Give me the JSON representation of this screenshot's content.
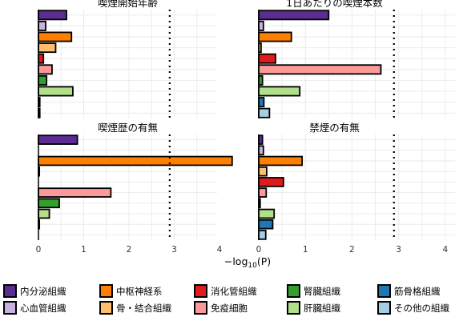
{
  "x_axis_label": "−log₁₀(P)",
  "xlabel_parts": {
    "prefix": "−log",
    "sub": "10",
    "suffix": "(P)"
  },
  "tissues": [
    {
      "key": "endocrine",
      "label": "内分泌組織",
      "color": "#5b2c91"
    },
    {
      "key": "cardiovascular",
      "label": "心血管組織",
      "color": "#c9b3dc"
    },
    {
      "key": "cns",
      "label": "中枢神経系",
      "color": "#ff7f00"
    },
    {
      "key": "bone",
      "label": "骨・結合組織",
      "color": "#fdbf6f"
    },
    {
      "key": "gi",
      "label": "消化管組織",
      "color": "#e31a1c"
    },
    {
      "key": "immune",
      "label": "免疫細胞",
      "color": "#fb9a99"
    },
    {
      "key": "kidney",
      "label": "腎臓組織",
      "color": "#33a02c"
    },
    {
      "key": "liver",
      "label": "肝臓組織",
      "color": "#b2df8a"
    },
    {
      "key": "muscle",
      "label": "筋骨格組織",
      "color": "#1f78b4"
    },
    {
      "key": "other",
      "label": "その他の組織",
      "color": "#a6cee3"
    }
  ],
  "chart_data": [
    {
      "type": "bar",
      "orientation": "horizontal",
      "title": "喫煙開始年齢",
      "categories": [
        "内分泌組織",
        "心血管組織",
        "中枢神経系",
        "骨・結合組織",
        "消化管組織",
        "免疫細胞",
        "腎臓組織",
        "肝臓組織",
        "筋骨格組織",
        "その他の組織"
      ],
      "values": [
        0.62,
        0.16,
        0.73,
        0.38,
        0.11,
        0.3,
        0.18,
        0.76,
        0.03,
        0.03
      ],
      "xlim": [
        0,
        4.2
      ],
      "xticks": [
        0,
        1,
        2,
        3,
        4
      ],
      "threshold": 2.9
    },
    {
      "type": "bar",
      "orientation": "horizontal",
      "title": "1日あたりの喫煙本数",
      "categories": [
        "内分泌組織",
        "心血管組織",
        "中枢神経系",
        "骨・結合組織",
        "消化管組織",
        "免疫細胞",
        "腎臓組織",
        "肝臓組織",
        "筋骨格組織",
        "その他の組織"
      ],
      "values": [
        1.5,
        0.1,
        0.7,
        0.05,
        0.36,
        2.62,
        0.08,
        0.88,
        0.11,
        0.23
      ],
      "xlim": [
        0,
        4.2
      ],
      "xticks": [
        0,
        1,
        2,
        3,
        4
      ],
      "threshold": 2.9
    },
    {
      "type": "bar",
      "orientation": "horizontal",
      "title": "喫煙歴の有無",
      "categories": [
        "内分泌組織",
        "心血管組織",
        "中枢神経系",
        "骨・結合組織",
        "消化管組織",
        "免疫細胞",
        "腎臓組織",
        "肝臓組織",
        "筋骨格組織",
        "その他の組織"
      ],
      "values": [
        0.86,
        0.0,
        4.28,
        0.02,
        0.0,
        1.6,
        0.46,
        0.24,
        0.02,
        0.0
      ],
      "xlim": [
        0,
        4.2
      ],
      "xticks": [
        0,
        1,
        2,
        3,
        4
      ],
      "threshold": 2.9
    },
    {
      "type": "bar",
      "orientation": "horizontal",
      "title": "禁煙の有無",
      "categories": [
        "内分泌組織",
        "心血管組織",
        "中枢神経系",
        "骨・結合組織",
        "消化管組織",
        "免疫細胞",
        "腎臓組織",
        "肝臓組織",
        "筋骨格組織",
        "その他の組織"
      ],
      "values": [
        0.08,
        0.1,
        0.93,
        0.17,
        0.53,
        0.16,
        0.03,
        0.33,
        0.3,
        0.15
      ],
      "xlim": [
        0,
        4.2
      ],
      "xticks": [
        0,
        1,
        2,
        3,
        4
      ],
      "threshold": 2.9
    }
  ]
}
